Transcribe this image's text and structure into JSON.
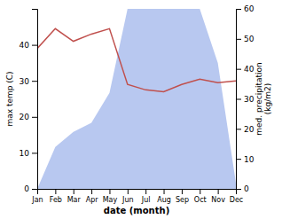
{
  "chart_data": {
    "type": "line",
    "x_label": "date (month)",
    "y_label": "max temp (C)",
    "y2_label": "med. precipitation\n(kg/m2)",
    "categories": [
      "Jan",
      "Feb",
      "Mar",
      "Apr",
      "May",
      "Jun",
      "Jul",
      "Aug",
      "Sep",
      "Oct",
      "Nov",
      "Dec"
    ],
    "series": [
      {
        "type": "area",
        "axis": "y2",
        "color": "#b8c8f0",
        "values": [
          0,
          14,
          19,
          22,
          32,
          60,
          60,
          60,
          60,
          60,
          42,
          2
        ]
      },
      {
        "type": "line",
        "color": "#c0504d",
        "values": [
          39,
          44.5,
          41,
          43,
          44.5,
          29,
          27.5,
          27,
          29,
          30.5,
          29.5,
          30
        ]
      }
    ],
    "ylim": [
      0,
      50
    ],
    "yticks": [
      0,
      10,
      20,
      30,
      40
    ],
    "y2lim": [
      0,
      60
    ],
    "y2ticks": [
      0,
      10,
      20,
      30,
      40,
      50,
      60
    ],
    "grid": false
  }
}
